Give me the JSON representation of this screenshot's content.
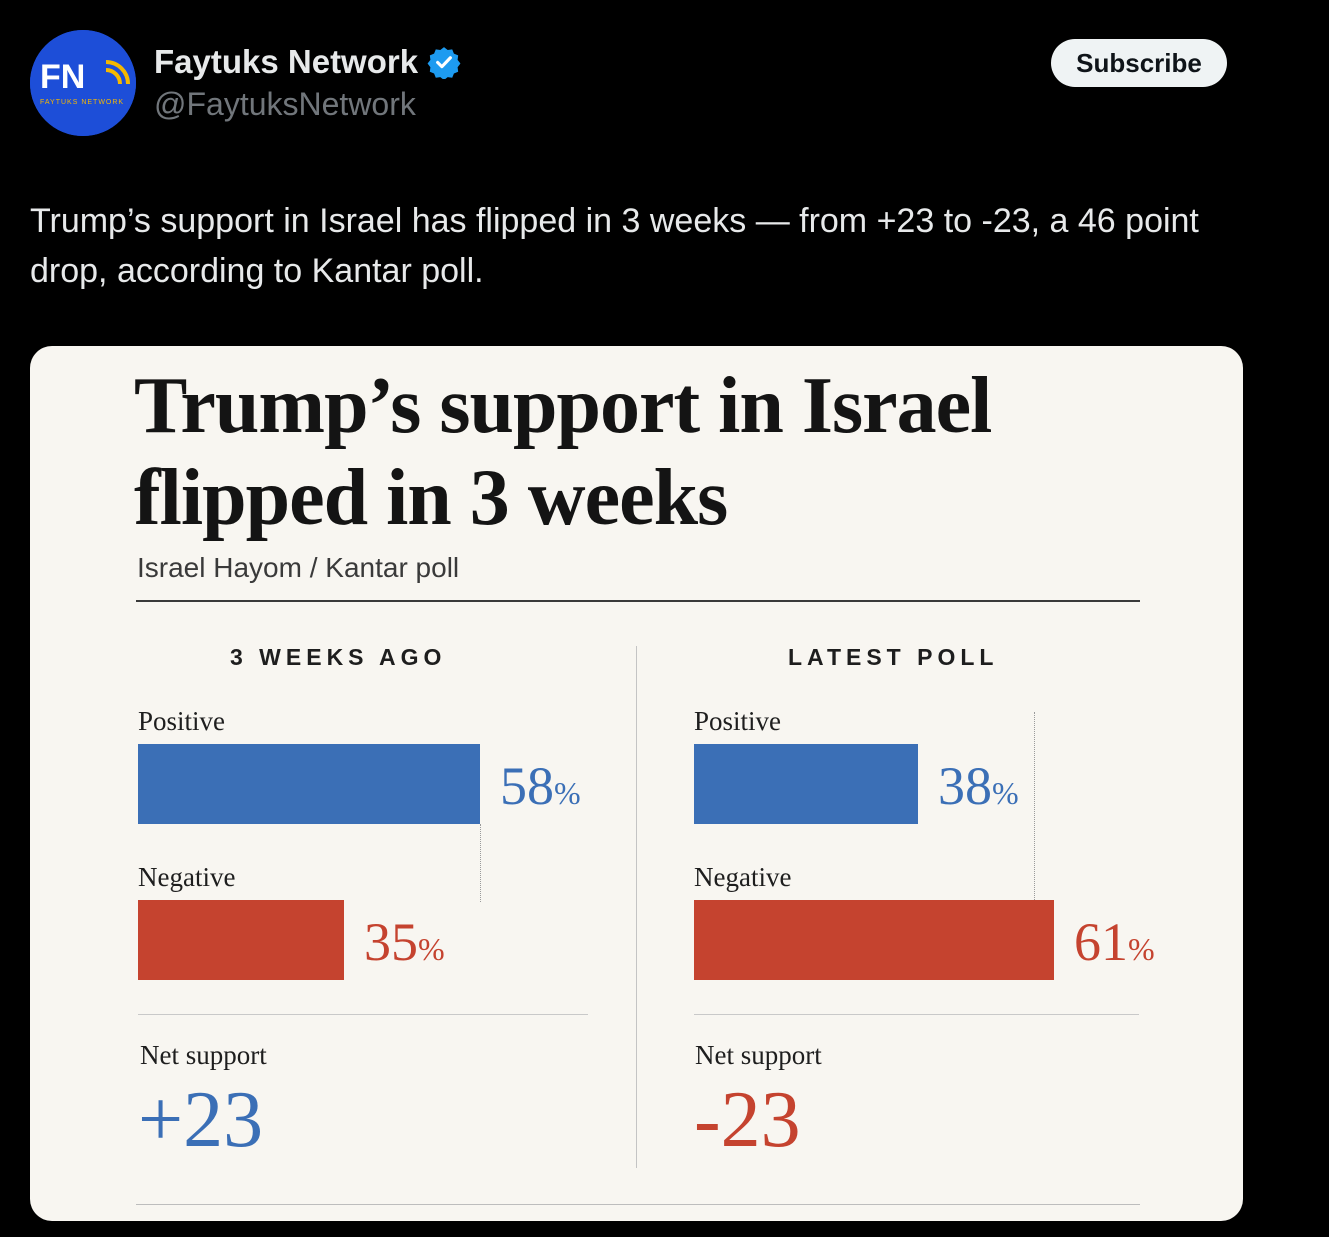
{
  "post": {
    "display_name": "Faytuks Network",
    "handle": "@FaytuksNetwork",
    "verified_icon": "verified-badge-icon",
    "subscribe_label": "Subscribe",
    "text": "Trump’s support in Israel has flipped in 3 weeks — from +23 to -23, a 46 point drop, according to Kantar poll.",
    "avatar": {
      "logo_letters": "FN",
      "logo_caption": "FAYTUKS NETWORK",
      "bg_color": "#1d4ed8"
    }
  },
  "card": {
    "title_line1": "Trump’s support in Israel",
    "title_line2": "flipped in 3 weeks",
    "source": "Israel Hayom / Kantar poll"
  },
  "chart_data": {
    "type": "bar",
    "title": "Trump’s support in Israel flipped in 3 weeks",
    "subtitle": "Israel Hayom / Kantar poll",
    "unit": "%",
    "xlim": [
      0,
      100
    ],
    "colors": {
      "Positive": "#3b6fb6",
      "Negative": "#c5432f"
    },
    "panels": [
      {
        "heading": "3 WEEKS AGO",
        "bars": [
          {
            "label": "Positive",
            "value": 58
          },
          {
            "label": "Negative",
            "value": 35
          }
        ],
        "net_label": "Net support",
        "net_value": "+23"
      },
      {
        "heading": "LATEST POLL",
        "bars": [
          {
            "label": "Positive",
            "value": 38
          },
          {
            "label": "Negative",
            "value": 61
          }
        ],
        "net_label": "Net support",
        "net_value": "-23"
      }
    ]
  }
}
